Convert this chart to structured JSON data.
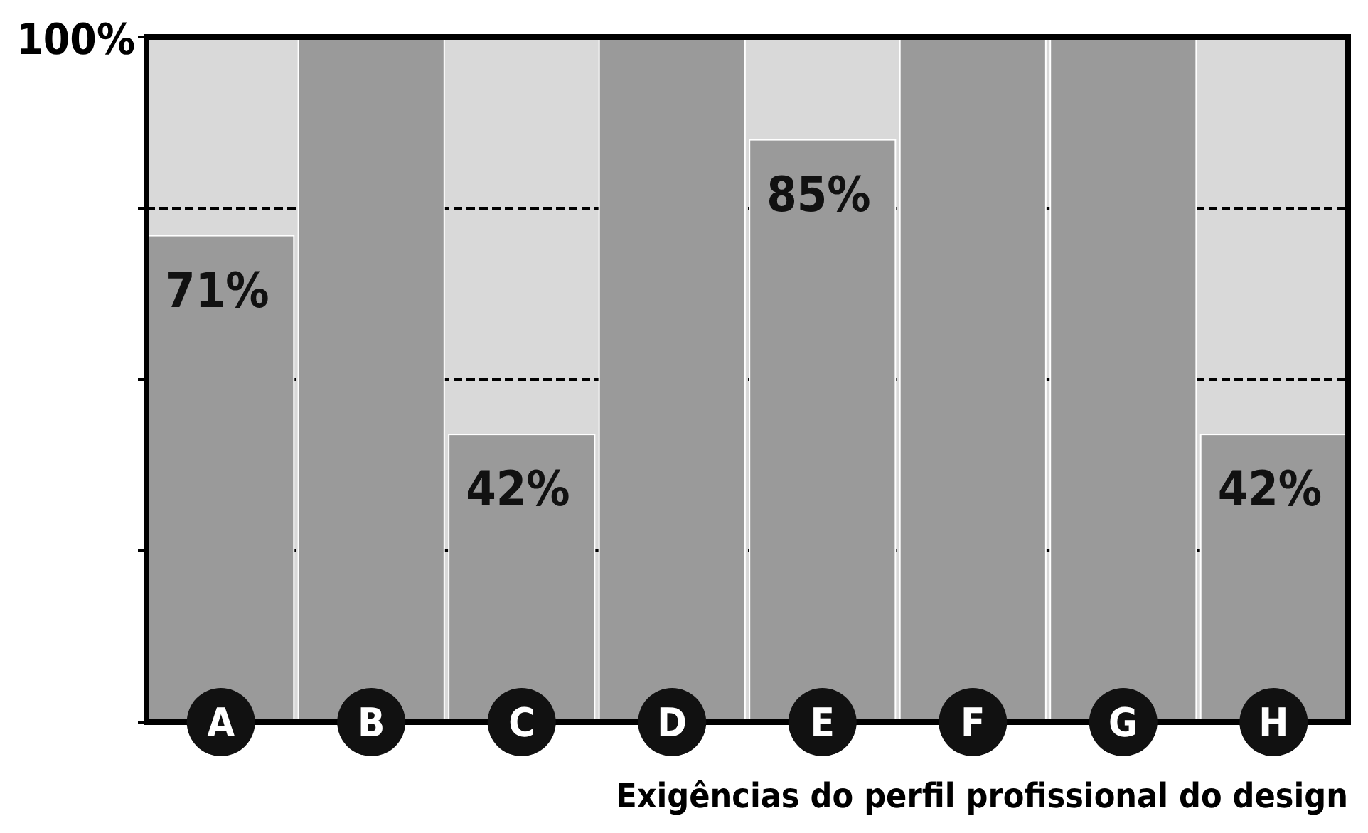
{
  "chart_data": {
    "type": "bar",
    "xlabel": "Exigências do perfil profissional do design",
    "categories": [
      "A",
      "B",
      "C",
      "D",
      "E",
      "F",
      "G",
      "H"
    ],
    "values": [
      71,
      100,
      42,
      100,
      85,
      100,
      100,
      42
    ],
    "value_labels": [
      "71%",
      null,
      "42%",
      null,
      "85%",
      null,
      null,
      "42%"
    ],
    "color": "#9a9a9a",
    "ylim": [
      0,
      100
    ],
    "yticks": [
      {
        "value": 0,
        "label": null
      },
      {
        "value": 25,
        "label": null
      },
      {
        "value": 50,
        "label": null
      },
      {
        "value": 75,
        "label": null
      },
      {
        "value": 100,
        "label": "100%"
      }
    ],
    "grid": "y"
  }
}
